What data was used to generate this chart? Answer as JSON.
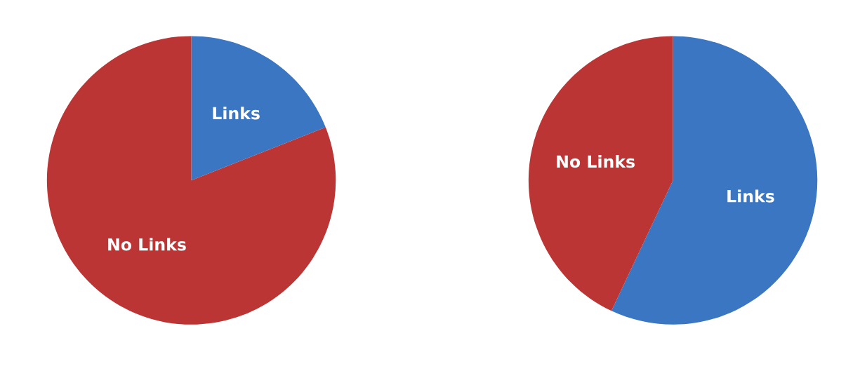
{
  "chart_data": [
    {
      "type": "pie",
      "categories": [
        "Links",
        "No Links"
      ],
      "values": [
        19,
        81
      ],
      "colors": [
        "#3a76c2",
        "#bb3535"
      ]
    },
    {
      "type": "pie",
      "categories": [
        "Links",
        "No Links"
      ],
      "values": [
        57,
        43
      ],
      "colors": [
        "#3a76c2",
        "#bb3535"
      ]
    }
  ]
}
